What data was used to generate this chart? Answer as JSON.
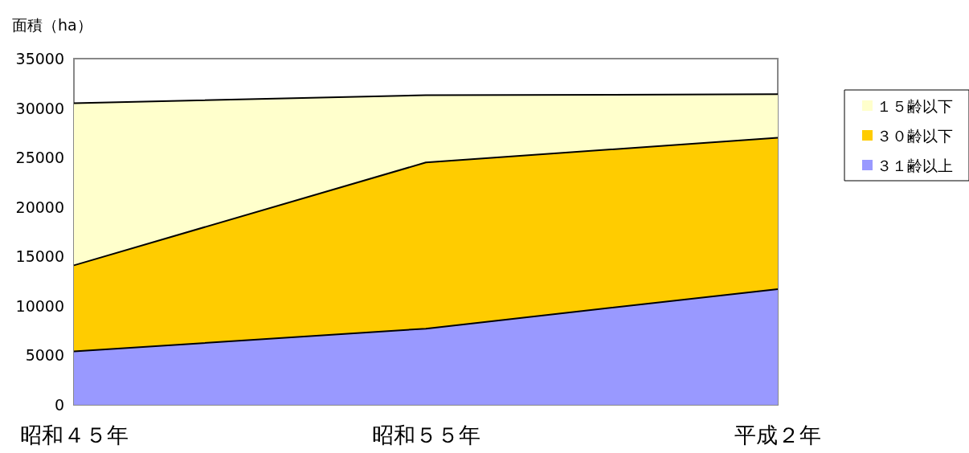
{
  "chart_data": {
    "type": "area",
    "stacked": true,
    "ylabel": "面積（ha）",
    "categories": [
      "昭和４５年",
      "昭和５５年",
      "平成２年"
    ],
    "series": [
      {
        "name": "３１齢以上",
        "color": "#9999ff",
        "values": [
          5400,
          7700,
          11700
        ]
      },
      {
        "name": "３０齢以下",
        "color": "#ffcc00",
        "values": [
          8700,
          16800,
          15300
        ]
      },
      {
        "name": "１５齢以下",
        "color": "#ffffcc",
        "values": [
          16400,
          6800,
          4400
        ]
      }
    ],
    "ylim": [
      0,
      35000
    ],
    "yticks": [
      0,
      5000,
      10000,
      15000,
      20000,
      25000,
      30000,
      35000
    ],
    "grid": false,
    "legend": "right",
    "marker": "none",
    "line_style": "solid"
  }
}
